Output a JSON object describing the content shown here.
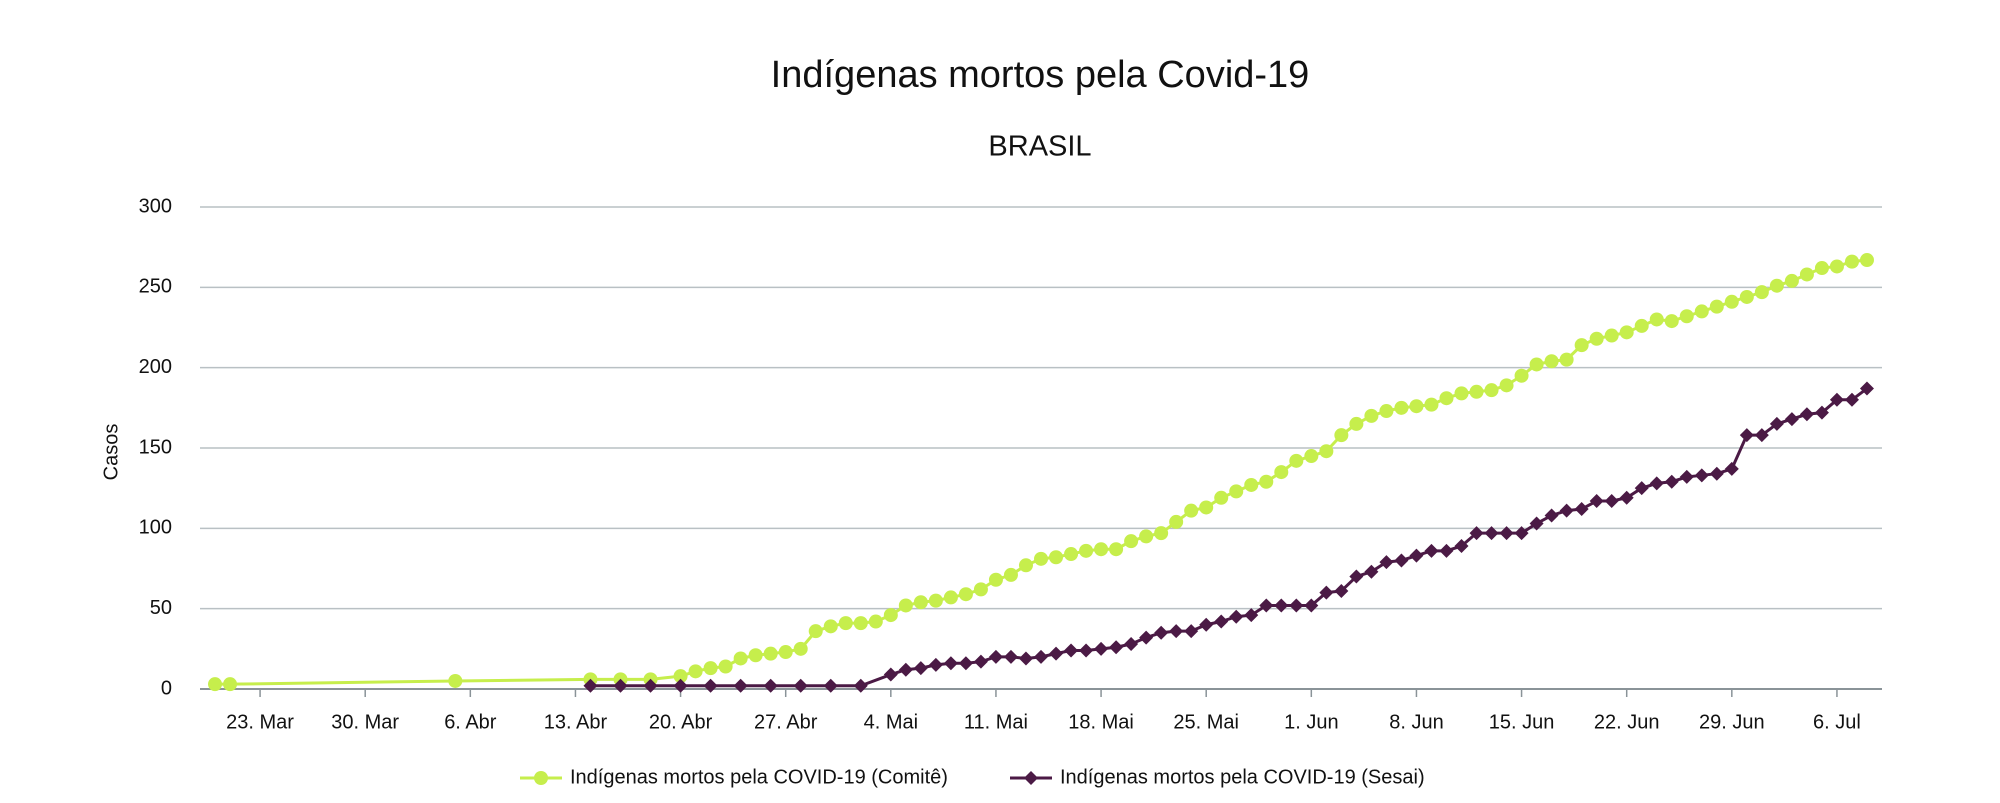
{
  "chart_data": {
    "type": "line",
    "title": "Indígenas mortos pela Covid-19",
    "subtitle": "BRASIL",
    "y_label": "Casos",
    "xlim": [
      "03-19",
      "07-09"
    ],
    "xticks": [
      {
        "value": "03-23",
        "label": "23. Mar"
      },
      {
        "value": "03-30",
        "label": "30. Mar"
      },
      {
        "value": "04-06",
        "label": "6. Abr"
      },
      {
        "value": "04-13",
        "label": "13. Abr"
      },
      {
        "value": "04-20",
        "label": "20. Abr"
      },
      {
        "value": "04-27",
        "label": "27. Abr"
      },
      {
        "value": "05-04",
        "label": "4. Mai"
      },
      {
        "value": "05-11",
        "label": "11. Mai"
      },
      {
        "value": "05-18",
        "label": "18. Mai"
      },
      {
        "value": "05-25",
        "label": "25. Mai"
      },
      {
        "value": "06-01",
        "label": "1. Jun"
      },
      {
        "value": "06-08",
        "label": "8. Jun"
      },
      {
        "value": "06-15",
        "label": "15. Jun"
      },
      {
        "value": "06-22",
        "label": "22. Jun"
      },
      {
        "value": "06-29",
        "label": "29. Jun"
      },
      {
        "value": "07-06",
        "label": "6. Jul"
      }
    ],
    "ylim": [
      0,
      300
    ],
    "yticks": [
      0,
      50,
      100,
      150,
      200,
      250,
      300
    ],
    "grid": true,
    "legend": "bottom",
    "series": [
      {
        "name": "Indígenas mortos pela COVID-19 (Comitê)",
        "color": "#c6ee4c",
        "marker": "circle",
        "x": [
          "03-20",
          "03-21",
          "04-05",
          "04-14",
          "04-16",
          "04-18",
          "04-20",
          "04-21",
          "04-22",
          "04-23",
          "04-24",
          "04-25",
          "04-26",
          "04-27",
          "04-28",
          "04-29",
          "04-30",
          "05-01",
          "05-02",
          "05-03",
          "05-04",
          "05-05",
          "05-06",
          "05-07",
          "05-08",
          "05-09",
          "05-10",
          "05-11",
          "05-12",
          "05-13",
          "05-14",
          "05-15",
          "05-16",
          "05-17",
          "05-18",
          "05-19",
          "05-20",
          "05-21",
          "05-22",
          "05-23",
          "05-24",
          "05-25",
          "05-26",
          "05-27",
          "05-28",
          "05-29",
          "05-30",
          "05-31",
          "06-01",
          "06-02",
          "06-03",
          "06-04",
          "06-05",
          "06-06",
          "06-07",
          "06-08",
          "06-09",
          "06-10",
          "06-11",
          "06-12",
          "06-13",
          "06-14",
          "06-15",
          "06-16",
          "06-17",
          "06-18",
          "06-19",
          "06-20",
          "06-21",
          "06-22",
          "06-23",
          "06-24",
          "06-25",
          "06-26",
          "06-27",
          "06-28",
          "06-29",
          "06-30",
          "07-01",
          "07-02",
          "07-03",
          "07-04",
          "07-05",
          "07-06",
          "07-07",
          "07-08"
        ],
        "values": [
          3,
          3,
          5,
          6,
          6,
          6,
          8,
          11,
          13,
          14,
          19,
          21,
          22,
          23,
          25,
          36,
          39,
          41,
          41,
          42,
          46,
          52,
          54,
          55,
          57,
          59,
          62,
          68,
          71,
          77,
          81,
          82,
          84,
          86,
          87,
          87,
          92,
          95,
          97,
          104,
          111,
          113,
          119,
          123,
          127,
          129,
          135,
          142,
          145,
          148,
          158,
          165,
          170,
          173,
          175,
          176,
          177,
          181,
          184,
          185,
          186,
          189,
          195,
          202,
          204,
          205,
          214,
          218,
          220,
          222,
          226,
          230,
          229,
          232,
          235,
          238,
          241,
          244,
          247,
          251,
          254,
          258,
          262,
          263,
          266,
          267
        ]
      },
      {
        "name": "Indígenas mortos pela COVID-19 (Sesai)",
        "color": "#4b1a45",
        "marker": "diamond",
        "x": [
          "04-14",
          "04-16",
          "04-18",
          "04-20",
          "04-22",
          "04-24",
          "04-26",
          "04-28",
          "04-30",
          "05-02",
          "05-04",
          "05-05",
          "05-06",
          "05-07",
          "05-08",
          "05-09",
          "05-10",
          "05-11",
          "05-12",
          "05-13",
          "05-14",
          "05-15",
          "05-16",
          "05-17",
          "05-18",
          "05-19",
          "05-20",
          "05-21",
          "05-22",
          "05-23",
          "05-24",
          "05-25",
          "05-26",
          "05-27",
          "05-28",
          "05-29",
          "05-30",
          "05-31",
          "06-01",
          "06-02",
          "06-03",
          "06-04",
          "06-05",
          "06-06",
          "06-07",
          "06-08",
          "06-09",
          "06-10",
          "06-11",
          "06-12",
          "06-13",
          "06-14",
          "06-15",
          "06-16",
          "06-17",
          "06-18",
          "06-19",
          "06-20",
          "06-21",
          "06-22",
          "06-23",
          "06-24",
          "06-25",
          "06-26",
          "06-27",
          "06-28",
          "06-29",
          "06-30",
          "07-01",
          "07-02",
          "07-03",
          "07-04",
          "07-05",
          "07-06",
          "07-07",
          "07-08"
        ],
        "values": [
          2,
          2,
          2,
          2,
          2,
          2,
          2,
          2,
          2,
          2,
          9,
          12,
          13,
          15,
          16,
          16,
          17,
          20,
          20,
          19,
          20,
          22,
          24,
          24,
          25,
          26,
          28,
          32,
          35,
          36,
          36,
          40,
          42,
          45,
          46,
          52,
          52,
          52,
          52,
          60,
          61,
          70,
          73,
          79,
          80,
          83,
          86,
          86,
          89,
          97,
          97,
          97,
          97,
          103,
          108,
          111,
          112,
          117,
          117,
          119,
          125,
          128,
          129,
          132,
          133,
          134,
          137,
          158,
          158,
          165,
          168,
          171,
          172,
          180,
          180,
          187
        ]
      }
    ]
  }
}
